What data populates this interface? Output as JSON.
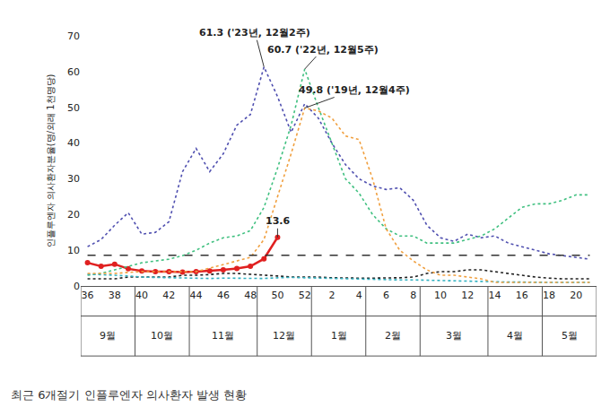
{
  "chart_data": {
    "type": "line",
    "title": "최근 6개절기 인플루엔자 의사환자 발생 현황",
    "y_label": "인플루엔자 의사환자분율(명/외래 1천명당)",
    "categories": [
      "36",
      null,
      "38",
      null,
      "40",
      null,
      "42",
      null,
      "44",
      null,
      "46",
      null,
      "48",
      null,
      "50",
      null,
      "52",
      null,
      "2",
      null,
      "4",
      null,
      "6",
      null,
      "8",
      null,
      "10",
      null,
      "12",
      null,
      "14",
      null,
      "16",
      null,
      "18",
      null,
      "20",
      null
    ],
    "month_groups": [
      {
        "label": "9월",
        "first": 0,
        "last": 3
      },
      {
        "label": "10월",
        "first": 4,
        "last": 7
      },
      {
        "label": "11월",
        "first": 8,
        "last": 12
      },
      {
        "label": "12월",
        "first": 13,
        "last": 16
      },
      {
        "label": "1월",
        "first": 17,
        "last": 20
      },
      {
        "label": "2월",
        "first": 21,
        "last": 24
      },
      {
        "label": "3월",
        "first": 25,
        "last": 29
      },
      {
        "label": "4월",
        "first": 30,
        "last": 33
      },
      {
        "label": "5월",
        "first": 34,
        "last": 37
      }
    ],
    "series": [
      {
        "color": "#e02020",
        "line_style": "solid",
        "marker": "circle",
        "values": [
          6.5,
          5.5,
          6.1,
          4.8,
          4.2,
          4.0,
          4.0,
          3.9,
          4.0,
          4.2,
          4.5,
          4.9,
          5.5,
          7.6,
          13.6,
          null,
          null,
          null,
          null,
          null,
          null,
          null,
          null,
          null,
          null,
          null,
          null,
          null,
          null,
          null,
          null,
          null,
          null,
          null,
          null,
          null,
          null,
          null
        ]
      },
      {
        "color": "#5050b0",
        "line_style": "dot",
        "values": [
          11,
          13,
          17,
          20.5,
          14.5,
          15,
          18,
          32,
          38.5,
          32,
          37,
          45,
          48,
          61.3,
          53,
          43,
          51,
          47,
          40,
          34,
          30,
          28,
          27,
          27.5,
          24,
          17,
          13.5,
          12.5,
          14.5,
          13.5,
          14,
          12,
          11,
          10,
          9,
          8.5,
          8,
          7.5
        ]
      },
      {
        "color": "#40c080",
        "line_style": "dot",
        "values": [
          3,
          3.5,
          4.5,
          5.5,
          6.5,
          7,
          7.5,
          8.5,
          10,
          12,
          13.5,
          14,
          15.5,
          22,
          33,
          45,
          60.7,
          50,
          40,
          30,
          26,
          20,
          16,
          14,
          14,
          12,
          12,
          12,
          13,
          14,
          16,
          19,
          22,
          23,
          23,
          24,
          25.5,
          25.5
        ]
      },
      {
        "color": "#222222",
        "line_style": "dot",
        "values": [
          2,
          2,
          2,
          2.5,
          2.5,
          2.5,
          2.5,
          3,
          3,
          3.2,
          3.5,
          3.5,
          3.3,
          3,
          2.8,
          2.5,
          2.5,
          2.5,
          2.3,
          2.2,
          2.2,
          2.2,
          2.2,
          2.3,
          2.5,
          3.5,
          4,
          4,
          4.5,
          4.5,
          4,
          3.5,
          3,
          2.5,
          2.2,
          2,
          2,
          2
        ]
      },
      {
        "color": "#30b0c0",
        "line_style": "dot",
        "values": [
          3.3,
          3.2,
          3,
          2.8,
          2.5,
          2.4,
          2.3,
          2.2,
          2.2,
          2.1,
          2.2,
          2.2,
          2.2,
          2.1,
          2.3,
          2.4,
          2.3,
          2.2,
          2.1,
          2,
          2,
          1.9,
          1.8,
          1.7,
          1.7,
          1.6,
          1.6,
          1.5,
          1.3,
          1.3,
          1.2,
          1.1,
          1.1,
          1,
          1,
          1,
          1,
          1
        ]
      },
      {
        "color": "#f0a040",
        "line_style": "dot",
        "values": [
          3.5,
          3.5,
          3.5,
          3.8,
          4,
          4,
          4,
          4,
          4,
          5,
          6,
          7,
          8,
          13,
          25,
          37,
          49.8,
          49,
          47,
          42,
          41,
          30,
          16,
          10,
          7,
          4.5,
          3,
          3,
          2.5,
          2,
          1,
          1,
          1,
          1,
          1,
          1,
          1,
          1
        ]
      },
      {
        "color": "#333333",
        "line_style": "dash",
        "values": [
          8.6,
          8.6,
          8.6,
          8.6,
          8.6,
          8.6,
          8.6,
          8.6,
          8.6,
          8.6,
          8.6,
          8.6,
          8.6,
          8.6,
          8.6,
          8.6,
          8.6,
          8.6,
          8.6,
          8.6,
          8.6,
          8.6,
          8.6,
          8.6,
          8.6,
          8.6,
          8.6,
          8.6,
          8.6,
          8.6,
          8.6,
          8.6,
          8.6,
          8.6,
          8.6,
          8.6,
          8.6,
          8.6
        ]
      }
    ],
    "annotations": [
      {
        "text": "61.3 ('23년, 12월2주)",
        "at": 13,
        "y": 61.3
      },
      {
        "text": "60.7 ('22년, 12월5주)",
        "at": 16,
        "y": 60.7
      },
      {
        "text": "49.8 ('19년, 12월4주)",
        "at": 16,
        "y": 49.8
      },
      {
        "text": "13.6",
        "at": 14,
        "y": 13.6
      }
    ],
    "ylim": [
      0,
      70
    ],
    "yticks": [
      0,
      10,
      20,
      30,
      40,
      50,
      60,
      70
    ],
    "grid": false
  }
}
